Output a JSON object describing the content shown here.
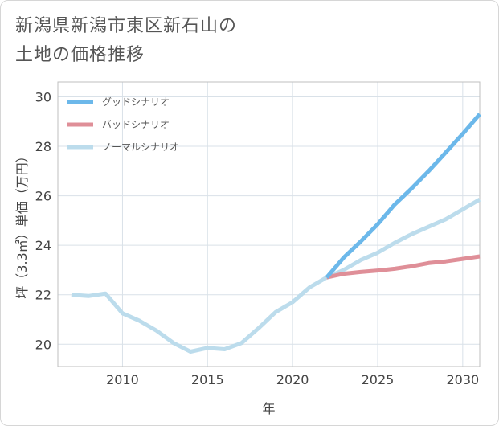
{
  "title": {
    "line1": "新潟県新潟市東区新石山の",
    "line2": "土地の価格推移"
  },
  "chart_data": {
    "type": "line",
    "xlabel": "年",
    "ylabel": "坪（3.3㎡）単価（万円）",
    "xlim": [
      2006.2,
      2031
    ],
    "ylim": [
      19.1,
      30.6
    ],
    "xticks": [
      2010,
      2015,
      2020,
      2025,
      2030
    ],
    "yticks": [
      20,
      22,
      24,
      26,
      28,
      30
    ],
    "grid": true,
    "legend_position": "top-left",
    "series": [
      {
        "name": "グッドシナリオ",
        "color": "#6cb8ea",
        "x": [
          2022,
          2023,
          2024,
          2025,
          2026,
          2027,
          2028,
          2029,
          2030,
          2031
        ],
        "y": [
          22.7,
          23.5,
          24.15,
          24.85,
          25.65,
          26.3,
          27.0,
          27.75,
          28.5,
          29.3
        ]
      },
      {
        "name": "バッドシナリオ",
        "color": "#df8f98",
        "x": [
          2022,
          2023,
          2024,
          2025,
          2026,
          2027,
          2028,
          2029,
          2030,
          2031
        ],
        "y": [
          22.7,
          22.85,
          22.92,
          22.98,
          23.05,
          23.15,
          23.28,
          23.35,
          23.45,
          23.55
        ]
      },
      {
        "name": "ノーマルシナリオ",
        "color": "#bcdcec",
        "x": [
          2007,
          2008,
          2009,
          2010,
          2011,
          2012,
          2013,
          2014,
          2015,
          2016,
          2017,
          2018,
          2019,
          2020,
          2021,
          2022,
          2023,
          2024,
          2025,
          2026,
          2027,
          2028,
          2029,
          2030,
          2031
        ],
        "y": [
          22.0,
          21.95,
          22.05,
          21.25,
          20.95,
          20.55,
          20.05,
          19.7,
          19.85,
          19.8,
          20.05,
          20.65,
          21.3,
          21.7,
          22.3,
          22.7,
          23.0,
          23.4,
          23.7,
          24.1,
          24.45,
          24.75,
          25.05,
          25.45,
          25.85
        ]
      }
    ]
  }
}
